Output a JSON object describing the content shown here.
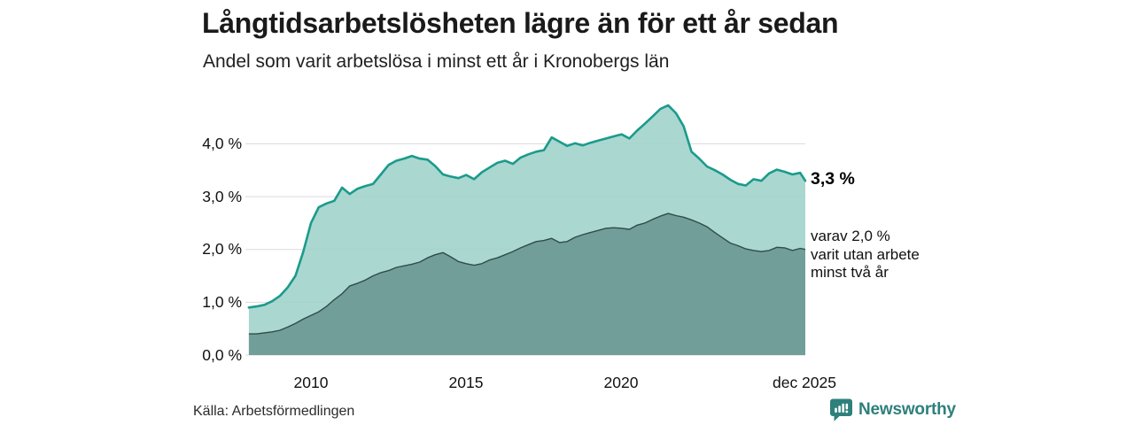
{
  "header": {
    "title": "Långtidsarbetslösheten lägre än för ett år sedan",
    "subtitle": "Andel som varit arbetslösa i minst ett år i Kronobergs län"
  },
  "footer": {
    "source": "Källa: Arbetsförmedlingen",
    "brand": "Newsworthy",
    "brand_icon": "newsworthy-speech-bubble-bar-chart-icon"
  },
  "colors": {
    "accent_teal": "#1a9b8b",
    "light_fill": "#9fd2cb",
    "dark_fill": "#719e99",
    "dark_line": "#2f4c4a",
    "gridline": "#dadae0",
    "brand_teal": "#2e807b",
    "text": "#1a1a1a"
  },
  "chart_data": {
    "type": "area",
    "title": "Långtidsarbetslösheten lägre än för ett år sedan",
    "subtitle": "Andel som varit arbetslösa i minst ett år i Kronobergs län",
    "unit": "%",
    "xlim": [
      2008.0,
      2025.92
    ],
    "ylim": [
      0,
      4.9
    ],
    "grid": "horizontal",
    "yticks": [
      "4,0 %",
      "3,0 %",
      "2,0 %",
      "1,0 %",
      "0,0 %"
    ],
    "ytick_values": [
      4,
      3,
      2,
      1,
      0
    ],
    "xticks": [
      {
        "label": "2010",
        "year": 2010
      },
      {
        "label": "2015",
        "year": 2015
      },
      {
        "label": "2020",
        "year": 2020
      },
      {
        "label": "dec 2025",
        "year": 2025.92
      }
    ],
    "x": [
      2008.0,
      2008.25,
      2008.5,
      2008.75,
      2009.0,
      2009.25,
      2009.5,
      2009.75,
      2010.0,
      2010.25,
      2010.5,
      2010.75,
      2011.0,
      2011.25,
      2011.5,
      2011.75,
      2012.0,
      2012.25,
      2012.5,
      2012.75,
      2013.0,
      2013.25,
      2013.5,
      2013.75,
      2014.0,
      2014.25,
      2014.5,
      2014.75,
      2015.0,
      2015.25,
      2015.5,
      2015.75,
      2016.0,
      2016.25,
      2016.5,
      2016.75,
      2017.0,
      2017.25,
      2017.5,
      2017.75,
      2018.0,
      2018.25,
      2018.5,
      2018.75,
      2019.0,
      2019.25,
      2019.5,
      2019.75,
      2020.0,
      2020.25,
      2020.5,
      2020.75,
      2021.0,
      2021.25,
      2021.5,
      2021.75,
      2022.0,
      2022.25,
      2022.5,
      2022.75,
      2023.0,
      2023.25,
      2023.5,
      2023.75,
      2024.0,
      2024.25,
      2024.5,
      2024.75,
      2025.0,
      2025.25,
      2025.5,
      2025.75,
      2025.92
    ],
    "series": [
      {
        "name": "Andel som varit arbetslösa i minst ett år",
        "values": [
          0.9,
          0.92,
          0.95,
          1.02,
          1.12,
          1.28,
          1.5,
          1.95,
          2.5,
          2.8,
          2.87,
          2.92,
          3.17,
          3.05,
          3.15,
          3.2,
          3.24,
          3.42,
          3.6,
          3.68,
          3.72,
          3.77,
          3.72,
          3.7,
          3.58,
          3.42,
          3.38,
          3.35,
          3.41,
          3.33,
          3.46,
          3.55,
          3.64,
          3.68,
          3.62,
          3.74,
          3.8,
          3.85,
          3.88,
          4.12,
          4.04,
          3.96,
          4.01,
          3.97,
          4.02,
          4.06,
          4.1,
          4.14,
          4.18,
          4.1,
          4.25,
          4.38,
          4.52,
          4.66,
          4.73,
          4.58,
          4.33,
          3.85,
          3.72,
          3.57,
          3.5,
          3.42,
          3.32,
          3.24,
          3.21,
          3.33,
          3.3,
          3.44,
          3.51,
          3.47,
          3.42,
          3.45,
          3.3
        ]
      },
      {
        "name": "varav utan arbete minst två år",
        "values": [
          0.4,
          0.4,
          0.42,
          0.44,
          0.47,
          0.53,
          0.6,
          0.68,
          0.75,
          0.82,
          0.92,
          1.05,
          1.16,
          1.31,
          1.36,
          1.42,
          1.5,
          1.56,
          1.6,
          1.66,
          1.69,
          1.72,
          1.76,
          1.84,
          1.9,
          1.94,
          1.86,
          1.77,
          1.73,
          1.7,
          1.73,
          1.8,
          1.84,
          1.9,
          1.96,
          2.03,
          2.09,
          2.15,
          2.17,
          2.21,
          2.13,
          2.15,
          2.23,
          2.28,
          2.32,
          2.36,
          2.4,
          2.41,
          2.4,
          2.38,
          2.46,
          2.5,
          2.57,
          2.63,
          2.68,
          2.64,
          2.61,
          2.56,
          2.5,
          2.43,
          2.32,
          2.22,
          2.12,
          2.07,
          2.01,
          1.98,
          1.96,
          1.98,
          2.04,
          2.03,
          1.98,
          2.02,
          2.0
        ]
      }
    ],
    "annotations": {
      "total_end_label": "3,3 %",
      "two_year_lines": [
        "varav 2,0 %",
        "varit utan arbete",
        "minst två år"
      ]
    }
  }
}
